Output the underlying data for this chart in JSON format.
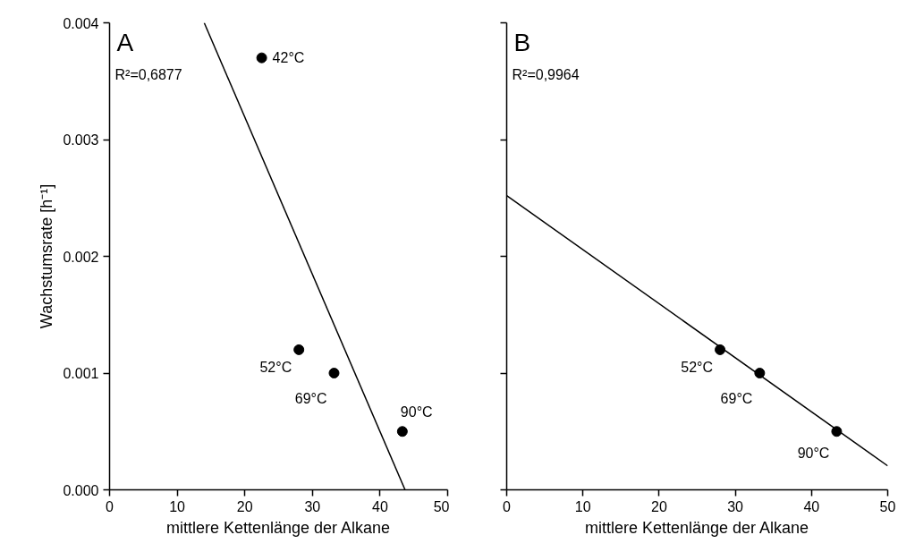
{
  "chart_data": [
    {
      "type": "scatter",
      "title": "A",
      "xlabel": "mittlere Kettenlänge der Alkane",
      "ylabel": "Wachstumsrate [h⁻¹]",
      "xlim": [
        0,
        50
      ],
      "xticks": [
        0,
        10,
        20,
        30,
        40,
        50
      ],
      "ylim": [
        0,
        0.004
      ],
      "yticks": [
        {
          "value": 0,
          "label": "0.000"
        },
        0.001,
        0.002,
        0.003,
        0.004
      ],
      "grid": false,
      "series": [
        {
          "color": "#000000",
          "marker": "circle",
          "x": [
            22.5,
            28,
            33.2,
            43.3
          ],
          "values": [
            0.0037,
            0.0012,
            0.001,
            0.0005
          ]
        },
        {
          "type": "line",
          "color": "#000000",
          "marker": "none",
          "line_style": "solid",
          "x": [
            14,
            43.7
          ],
          "values": [
            0.004,
            0
          ]
        }
      ],
      "annotations": [
        "R²=0,6877",
        {
          "text": "42°C",
          "x": 22.5,
          "y": 0.0037
        },
        {
          "text": "52°C",
          "x": 28,
          "y": 0.0012
        },
        {
          "text": "69°C",
          "x": 33.2,
          "y": 0.001
        },
        {
          "text": "90°C",
          "x": 43.3,
          "y": 0.0005
        }
      ]
    },
    {
      "type": "scatter",
      "title": "B",
      "xlabel": "mittlere Kettenlänge der Alkane",
      "xlim": [
        0,
        50
      ],
      "xticks": [
        0,
        10,
        20,
        30,
        40,
        50
      ],
      "ylim": [
        0,
        0.004
      ],
      "yticks": [
        0,
        0.001,
        0.002,
        0.003,
        0.004
      ],
      "tick_labels": "x",
      "grid": false,
      "series": [
        {
          "color": "#000000",
          "marker": "circle",
          "x": [
            28,
            33.2,
            43.3
          ],
          "values": [
            0.0012,
            0.001,
            0.0005
          ]
        },
        {
          "type": "line",
          "color": "#000000",
          "marker": "none",
          "line_style": "solid",
          "x": [
            0,
            50
          ],
          "values": [
            0.00252,
            0.000205
          ]
        }
      ],
      "annotations": [
        "R²=0,9964",
        {
          "text": "52°C",
          "x": 28,
          "y": 0.0012
        },
        {
          "text": "69°C",
          "x": 33.2,
          "y": 0.001
        },
        {
          "text": "90°C",
          "x": 43.3,
          "y": 0.0005
        }
      ]
    }
  ]
}
